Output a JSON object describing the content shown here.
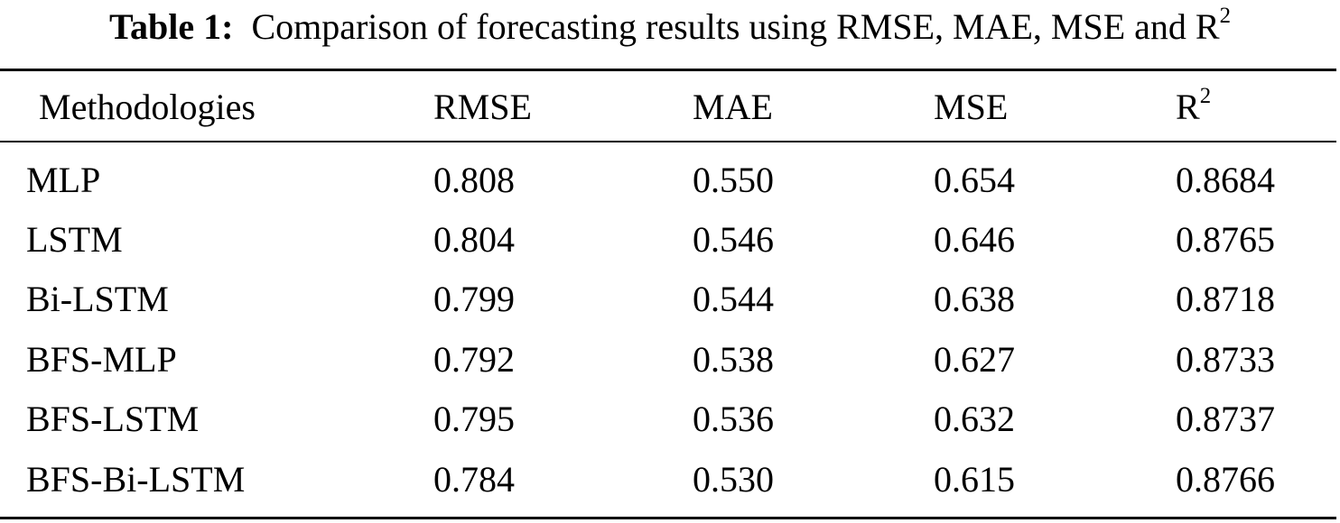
{
  "caption": {
    "label": "Table 1:",
    "text": "Comparison of forecasting results using RMSE, MAE, MSE and R",
    "superscript": "2"
  },
  "table": {
    "headers": [
      "Methodologies",
      "RMSE",
      "MAE",
      "MSE",
      "R"
    ],
    "header_r2_superscript": "2",
    "rows": [
      [
        "MLP",
        "0.808",
        "0.550",
        "0.654",
        "0.8684"
      ],
      [
        "LSTM",
        "0.804",
        "0.546",
        "0.646",
        "0.8765"
      ],
      [
        "Bi-LSTM",
        "0.799",
        "0.544",
        "0.638",
        "0.8718"
      ],
      [
        "BFS-MLP",
        "0.792",
        "0.538",
        "0.627",
        "0.8733"
      ],
      [
        "BFS-LSTM",
        "0.795",
        "0.536",
        "0.632",
        "0.8737"
      ],
      [
        "BFS-Bi-LSTM",
        "0.784",
        "0.530",
        "0.615",
        "0.8766"
      ]
    ]
  }
}
